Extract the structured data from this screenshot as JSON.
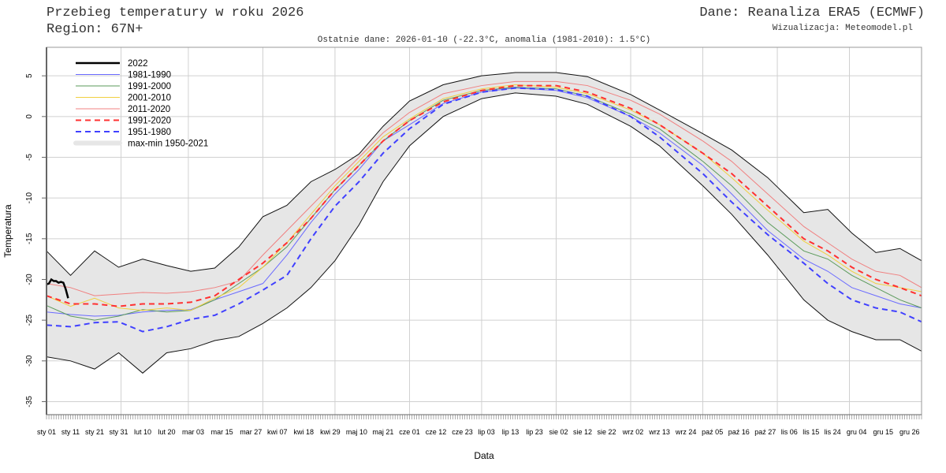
{
  "header": {
    "title": "Przebieg temperatury w roku 2026",
    "region": "Region: 67N+",
    "source": "Dane: Reanaliza ERA5 (ECMWF)",
    "credit": "Wizualizacja: Meteomodel.pl",
    "subtitle": "Ostatnie dane: 2026-01-10 (-22.3°C, anomalia (1981-2010): 1.5°C)"
  },
  "chart_data": {
    "type": "line",
    "xlabel": "Data",
    "ylabel": "Temperatura",
    "ylim": [
      -36.6,
      8.5
    ],
    "xlim": [
      "01-01",
      "12-31"
    ],
    "grid": true,
    "legend_position": "top-left",
    "yticks": [
      5,
      0,
      -5,
      -10,
      -15,
      -20,
      -25,
      -30,
      -35
    ],
    "xtick_labels": [
      {
        "date": "01-01",
        "label": "sty 01"
      },
      {
        "date": "01-11",
        "label": "sty 11"
      },
      {
        "date": "01-21",
        "label": "sty 21"
      },
      {
        "date": "01-31",
        "label": "sty 31"
      },
      {
        "date": "02-10",
        "label": "lut 10"
      },
      {
        "date": "02-20",
        "label": "lut 20"
      },
      {
        "date": "03-03",
        "label": "mar 03"
      },
      {
        "date": "03-15",
        "label": "mar 15"
      },
      {
        "date": "03-27",
        "label": "mar 27"
      },
      {
        "date": "04-07",
        "label": "kwi 07"
      },
      {
        "date": "04-18",
        "label": "kwi 18"
      },
      {
        "date": "04-29",
        "label": "kwi 29"
      },
      {
        "date": "05-10",
        "label": "maj 10"
      },
      {
        "date": "05-21",
        "label": "maj 21"
      },
      {
        "date": "06-01",
        "label": "cze 01"
      },
      {
        "date": "06-12",
        "label": "cze 12"
      },
      {
        "date": "06-23",
        "label": "cze 23"
      },
      {
        "date": "07-03",
        "label": "lip 03"
      },
      {
        "date": "07-13",
        "label": "lip 13"
      },
      {
        "date": "07-23",
        "label": "lip 23"
      },
      {
        "date": "08-02",
        "label": "sie 02"
      },
      {
        "date": "08-12",
        "label": "sie 12"
      },
      {
        "date": "08-22",
        "label": "sie 22"
      },
      {
        "date": "09-02",
        "label": "wrz 02"
      },
      {
        "date": "09-13",
        "label": "wrz 13"
      },
      {
        "date": "09-24",
        "label": "wrz 24"
      },
      {
        "date": "10-05",
        "label": "paź 05"
      },
      {
        "date": "10-16",
        "label": "paź 16"
      },
      {
        "date": "10-27",
        "label": "paź 27"
      },
      {
        "date": "11-06",
        "label": "lis 06"
      },
      {
        "date": "11-15",
        "label": "lis 15"
      },
      {
        "date": "11-24",
        "label": "lis 24"
      },
      {
        "date": "12-04",
        "label": "gru 04"
      },
      {
        "date": "12-15",
        "label": "gru 15"
      },
      {
        "date": "12-26",
        "label": "gru 26"
      }
    ],
    "x": [
      "01-01",
      "01-11",
      "01-21",
      "01-31",
      "02-10",
      "02-20",
      "03-02",
      "03-12",
      "03-22",
      "04-01",
      "04-11",
      "04-21",
      "05-01",
      "05-11",
      "05-21",
      "06-01",
      "06-15",
      "07-01",
      "07-15",
      "08-01",
      "08-14",
      "09-01",
      "09-13",
      "10-01",
      "10-13",
      "10-28",
      "11-12",
      "11-22",
      "12-02",
      "12-12",
      "12-22",
      "12-31"
    ],
    "envelope": {
      "name": "max-min 1950-2021",
      "color": "#e6e6e6",
      "max": [
        -16.5,
        -19.5,
        -16.5,
        -18.5,
        -17.5,
        -18.3,
        -19,
        -18.6,
        -16,
        -12.3,
        -10.9,
        -8,
        -6.5,
        -4.6,
        -1.2,
        1.9,
        3.9,
        5,
        5.4,
        5.4,
        4.9,
        2.7,
        0.8,
        -2.1,
        -4.1,
        -7.5,
        -11.8,
        -11.4,
        -14.3,
        -16.7,
        -16.2,
        -17.7
      ],
      "min": [
        -29.5,
        -30,
        -31,
        -29,
        -31.5,
        -29,
        -28.5,
        -27.5,
        -27,
        -25.4,
        -23.5,
        -21,
        -17.7,
        -13.3,
        -8,
        -3.6,
        0,
        2.2,
        2.9,
        2.5,
        1.5,
        -1.2,
        -3.6,
        -8.5,
        -12,
        -17,
        -22.5,
        -25,
        -26.4,
        -27.4,
        -27.4,
        -28.8
      ]
    },
    "series": [
      {
        "name": "1981-1990",
        "color": "#6b6bff",
        "style": "solid",
        "values": [
          -24,
          -24.3,
          -24.5,
          -24.4,
          -24,
          -23.8,
          -23.7,
          -22.5,
          -21.5,
          -20.5,
          -17,
          -13,
          -9.5,
          -6.5,
          -3,
          -1,
          1.6,
          3,
          3.5,
          3.2,
          2.3,
          0,
          -2,
          -6,
          -9.5,
          -14,
          -17.5,
          -19,
          -21,
          -22,
          -23,
          -23.5
        ]
      },
      {
        "name": "1991-2000",
        "color": "#5a9a5a",
        "style": "solid",
        "values": [
          -23.2,
          -24.5,
          -25,
          -24.5,
          -23.7,
          -24,
          -23.8,
          -22.5,
          -20.5,
          -18.5,
          -16,
          -12.5,
          -9,
          -6,
          -3,
          -0.5,
          2,
          3.2,
          3.6,
          3.4,
          2.5,
          0.3,
          -1.5,
          -5.5,
          -8.5,
          -13,
          -16.5,
          -17.5,
          -19.5,
          -21,
          -22.5,
          -23.5
        ]
      },
      {
        "name": "2001-2010",
        "color": "#f0d040",
        "style": "solid",
        "values": [
          -22,
          -23.3,
          -22.3,
          -23.5,
          -23.8,
          -23.5,
          -23.8,
          -22.3,
          -21,
          -18.5,
          -15.5,
          -12,
          -8.5,
          -5.5,
          -2.5,
          -0.3,
          2.2,
          3.4,
          3.9,
          3.6,
          2.8,
          0.8,
          -1,
          -4.5,
          -7.5,
          -11.5,
          -15.3,
          -17,
          -19,
          -20.5,
          -21,
          -21.5
        ]
      },
      {
        "name": "2011-2020",
        "color": "#f08080",
        "style": "solid",
        "values": [
          -20.5,
          -21,
          -22,
          -21.8,
          -21.6,
          -21.7,
          -21.5,
          -21,
          -20.2,
          -17,
          -14,
          -11,
          -8,
          -5,
          -2,
          0.5,
          2.8,
          3.8,
          4.3,
          4.3,
          3.8,
          2,
          0.3,
          -3,
          -5.5,
          -9.5,
          -13.5,
          -15.5,
          -17.5,
          -19,
          -19.5,
          -21
        ]
      },
      {
        "name": "1991-2020",
        "color": "#ff3030",
        "style": "dashed",
        "values": [
          -22,
          -23,
          -23,
          -23.3,
          -23,
          -23,
          -22.8,
          -22,
          -20,
          -18,
          -15.5,
          -12.5,
          -9,
          -6,
          -3,
          -0.5,
          1.8,
          3.2,
          3.8,
          3.8,
          3,
          1,
          -1,
          -4.5,
          -7,
          -11,
          -15,
          -16.5,
          -18.5,
          -20,
          -21,
          -22
        ]
      },
      {
        "name": "1951-1980",
        "color": "#4040ff",
        "style": "dashed",
        "values": [
          -25.6,
          -25.8,
          -25.3,
          -25.2,
          -26.4,
          -25.8,
          -24.9,
          -24.4,
          -23,
          -21.3,
          -19.5,
          -15,
          -11,
          -8,
          -4.5,
          -1.5,
          1.5,
          3,
          3.5,
          3.3,
          2.5,
          0,
          -2.5,
          -7,
          -10.5,
          -14.5,
          -18,
          -20.5,
          -22.5,
          -23.5,
          -24,
          -25.2
        ]
      }
    ],
    "current": {
      "name": "2022",
      "color": "#000000",
      "x": [
        "01-01",
        "01-02",
        "01-03",
        "01-04",
        "01-05",
        "01-06",
        "01-07",
        "01-08",
        "01-09",
        "01-10"
      ],
      "values": [
        -20.6,
        -20.5,
        -20,
        -20.2,
        -20.2,
        -20.4,
        -20.3,
        -20.4,
        -21.2,
        -22.3
      ]
    }
  }
}
